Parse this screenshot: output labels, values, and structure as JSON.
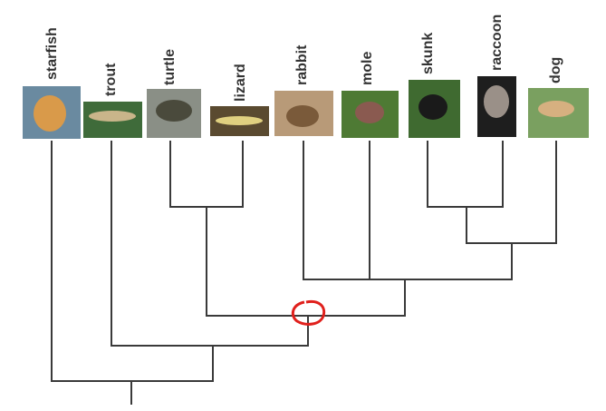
{
  "taxa": [
    "starfish",
    "trout",
    "turtle",
    "lizard",
    "rabbit",
    "mole",
    "skunk",
    "raccoon",
    "dog"
  ]
}
